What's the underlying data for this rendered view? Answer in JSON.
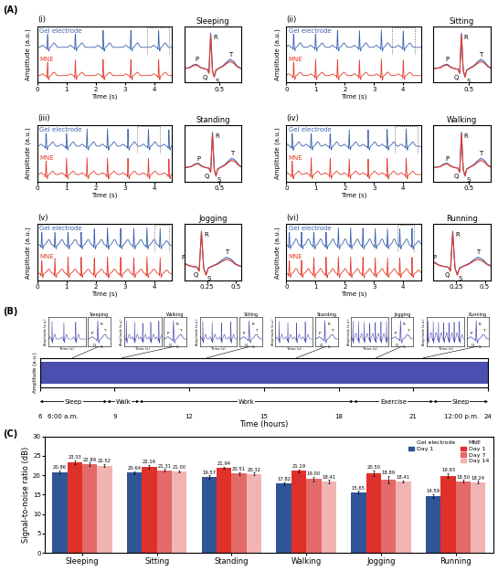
{
  "panel_labels": [
    "(A)",
    "(B)",
    "(C)"
  ],
  "ecg_template": {
    "t": [
      -0.4,
      -0.3,
      -0.24,
      -0.2,
      -0.16,
      -0.12,
      -0.08,
      -0.04,
      -0.02,
      0,
      0.02,
      0.04,
      0.06,
      0.1,
      0.14,
      0.18,
      0.22,
      0.26,
      0.3,
      0.34,
      0.4
    ],
    "values": [
      [
        0,
        0,
        0.03,
        0.1,
        0.12,
        0.04,
        0,
        -0.02,
        -0.12,
        1.0,
        -0.05,
        -0.22,
        -0.04,
        0.02,
        0.08,
        0.18,
        0.26,
        0.2,
        0.07,
        0.01,
        0
      ],
      [
        0,
        0,
        0.02,
        0.08,
        0.1,
        0.03,
        0,
        -0.02,
        -0.14,
        0.95,
        -0.06,
        -0.25,
        -0.05,
        0.01,
        0.06,
        0.14,
        0.2,
        0.15,
        0.05,
        0,
        0
      ]
    ]
  },
  "wave_labels": [
    {
      "label": "P",
      "t": -0.16
    },
    {
      "label": "Q",
      "t": -0.02
    },
    {
      "label": "R",
      "t": 0
    },
    {
      "label": "S",
      "t": 0.04
    },
    {
      "label": "T",
      "t": 0.22
    }
  ],
  "panel_A": {
    "ylabel": "Amplitude (a.u.)",
    "xlabel": "Time (s)",
    "ylim": [
      -0.4,
      1.2
    ],
    "series": [
      {
        "name": "Gel electrode",
        "color": "#3a62b0"
      },
      {
        "name": "MNE",
        "color": "#e53b2c"
      }
    ],
    "panels": [
      {
        "label": "(i)",
        "title": "Sleeping",
        "xlim": [
          0,
          4.6
        ],
        "xticks": [
          0,
          1,
          2,
          3,
          4
        ],
        "beats": [
          0.35,
          1.3,
          2.25,
          3.2,
          4.15
        ],
        "zoom_window": [
          3.75,
          4.5
        ],
        "zoom_xlim": [
          0.1,
          0.75
        ],
        "zoom_xticks": [
          0.5
        ],
        "zoom_r": 0.4
      },
      {
        "label": "(ii)",
        "title": "Sitting",
        "xlim": [
          0,
          4.6
        ],
        "xticks": [
          0,
          1,
          2,
          3,
          4
        ],
        "beats": [
          0.25,
          1.0,
          1.75,
          2.5,
          3.25,
          4.0
        ],
        "zoom_window": [
          3.6,
          4.4
        ],
        "zoom_xlim": [
          0.1,
          0.75
        ],
        "zoom_xticks": [
          0.5
        ],
        "zoom_r": 0.42
      },
      {
        "label": "(iii)",
        "title": "Standing",
        "xlim": [
          0,
          4.6
        ],
        "xticks": [
          0,
          1,
          2,
          3,
          4
        ],
        "beats": [
          0.3,
          1.0,
          1.7,
          2.4,
          3.1,
          3.8,
          4.5
        ],
        "zoom_window": [
          3.4,
          4.2
        ],
        "zoom_xlim": [
          0.1,
          0.75
        ],
        "zoom_xticks": [
          0.5
        ],
        "zoom_r": 0.42
      },
      {
        "label": "(iv)",
        "title": "Walking",
        "xlim": [
          0,
          4.6
        ],
        "xticks": [
          0,
          1,
          2,
          3,
          4
        ],
        "beats": [
          0.2,
          0.85,
          1.5,
          2.15,
          2.8,
          3.45,
          4.1
        ],
        "zoom_window": [
          3.7,
          4.5
        ],
        "zoom_xlim": [
          0.1,
          0.75
        ],
        "zoom_xticks": [
          0.5
        ],
        "zoom_r": 0.42
      },
      {
        "label": "(v)",
        "title": "Jogging",
        "xlim": [
          0,
          4.6
        ],
        "xticks": [
          0,
          1,
          2,
          3,
          4
        ],
        "beats": [
          0.15,
          0.6,
          1.05,
          1.5,
          1.95,
          2.4,
          2.85,
          3.3,
          3.75,
          4.2
        ],
        "zoom_window": [
          4.0,
          4.5
        ],
        "zoom_xlim": [
          0.05,
          0.55
        ],
        "zoom_xticks": [
          0.25,
          0.5
        ],
        "zoom_r": 0.2
      },
      {
        "label": "(vi)",
        "title": "Running",
        "xlim": [
          0,
          4.6
        ],
        "xticks": [
          0,
          1,
          2,
          3,
          4
        ],
        "beats": [
          0.1,
          0.52,
          0.94,
          1.36,
          1.78,
          2.2,
          2.62,
          3.04,
          3.46,
          3.88,
          4.3
        ],
        "zoom_window": [
          3.8,
          4.35
        ],
        "zoom_xlim": [
          0.05,
          0.55
        ],
        "zoom_xticks": [
          0.25,
          0.5
        ],
        "zoom_r": 0.22
      }
    ]
  },
  "panel_B": {
    "ylabel": "Amplitude (a.u.)",
    "xlabel": "Time (hours)",
    "xlim": [
      6,
      24
    ],
    "xticks": [
      6,
      9,
      12,
      15,
      18,
      21,
      24
    ],
    "ylim": [
      -0.5,
      1.2
    ],
    "signal_hours": [
      6.05,
      24
    ],
    "band": [
      -0.3,
      1.0
    ],
    "color": "#4a4fb0",
    "time_notes": [
      {
        "x": 6,
        "label": "6:00 a.m."
      },
      {
        "x": 24,
        "label": "12:00 p.m."
      }
    ],
    "activities": [
      {
        "label": "Sleep",
        "start": 6,
        "end": 8.7
      },
      {
        "label": "Walk",
        "start": 8.7,
        "end": 10
      },
      {
        "label": "Work",
        "start": 10,
        "end": 18.6
      },
      {
        "label": "Exercise",
        "start": 18.6,
        "end": 21.8
      },
      {
        "label": "Sleep",
        "start": 21.8,
        "end": 24
      }
    ],
    "inset_xlabel": "Time (s)",
    "inset_ylabel": "Amplitude (a.u.)",
    "inset_xlim": [
      0,
      3
    ],
    "inset_zoom_xlim": [
      -0.3,
      0.4
    ],
    "insets": [
      {
        "title": "Sleeping",
        "hour": 7.3,
        "beats": [
          0.3,
          1.25,
          2.2
        ]
      },
      {
        "title": "Walking",
        "hour": 9.3,
        "beats": [
          0.2,
          0.85,
          1.5,
          2.15,
          2.8
        ]
      },
      {
        "title": "Sitting",
        "hour": 12.7,
        "beats": [
          0.25,
          1.0,
          1.75,
          2.5
        ]
      },
      {
        "title": "Standing",
        "hour": 16.3,
        "beats": [
          0.3,
          1.0,
          1.7,
          2.4
        ]
      },
      {
        "title": "Jogging",
        "hour": 19.5,
        "beats": [
          0.15,
          0.6,
          1.05,
          1.5,
          1.95,
          2.4,
          2.85
        ]
      },
      {
        "title": "Running",
        "hour": 21.4,
        "beats": [
          0.1,
          0.52,
          0.94,
          1.36,
          1.78,
          2.2,
          2.62
        ]
      }
    ]
  },
  "chart_data": {
    "type": "bar",
    "ylabel": "Signal-to-noise ratio (dB)",
    "categories": [
      "Sleeping",
      "Sitting",
      "Standing",
      "Walking",
      "Jogging",
      "Running"
    ],
    "ylim": [
      0,
      30
    ],
    "yticks": [
      0,
      5,
      10,
      15,
      20,
      25,
      30
    ],
    "legend": "upper right",
    "data_labels": true,
    "series": [
      {
        "name": "Day 1",
        "group": "Gel electrode",
        "color": "#2f5597",
        "values": [
          20.86,
          20.64,
          19.57,
          17.82,
          15.65,
          14.59
        ],
        "value_labels": [
          "20.86",
          "20.64",
          "19.57",
          "17.82",
          "15.65",
          "14.59"
        ],
        "errors": [
          0.4,
          0.35,
          0.4,
          0.45,
          0.35,
          0.5
        ]
      },
      {
        "name": "Day 1",
        "group": "MNE",
        "color": "#e0302a",
        "values": [
          23.33,
          22.16,
          21.94,
          21.19,
          20.5,
          19.93
        ],
        "value_labels": [
          "23.33",
          "22.16",
          "21.94",
          "21.19",
          "20.50",
          "19.93"
        ],
        "errors": [
          0.5,
          0.55,
          0.3,
          0.35,
          0.7,
          0.6
        ]
      },
      {
        "name": "Day 7",
        "group": "MNE",
        "color": "#e46a6a",
        "values": [
          22.89,
          21.31,
          20.51,
          19.0,
          18.89,
          18.5
        ],
        "value_labels": [
          "22.89",
          "21.31",
          "20.51",
          "19.00",
          "18.89",
          "18.50"
        ],
        "errors": [
          0.4,
          0.3,
          0.35,
          0.6,
          1.0,
          0.3
        ]
      },
      {
        "name": "Day 14",
        "group": "MNE",
        "color": "#f2b3b3",
        "values": [
          22.52,
          21.0,
          20.32,
          18.41,
          18.41,
          18.24
        ],
        "value_labels": [
          "22.52",
          "21.00",
          "20.32",
          "18.41",
          "18.41",
          "18.24"
        ],
        "errors": [
          0.35,
          0.3,
          0.35,
          0.4,
          0.3,
          0.3
        ]
      }
    ]
  }
}
